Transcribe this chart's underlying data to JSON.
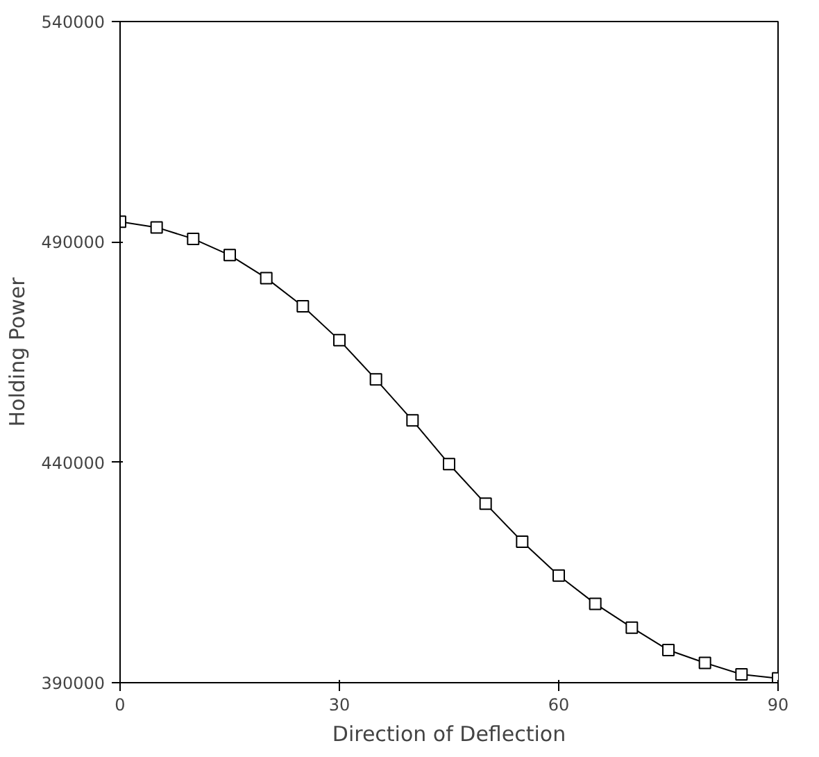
{
  "chart_data": {
    "type": "line",
    "xlabel": "Direction of Deflection",
    "ylabel": "Holding Power",
    "x": [
      0,
      5,
      10,
      15,
      20,
      25,
      30,
      35,
      40,
      45,
      50,
      55,
      60,
      65,
      70,
      75,
      80,
      85,
      90
    ],
    "series": [
      {
        "color": "#000000",
        "values": [
          494600,
          493300,
          490700,
          487000,
          481800,
          475400,
          467700,
          458800,
          449500,
          439600,
          430600,
          422000,
          414300,
          407900,
          402500,
          397400,
          394500,
          391900,
          391000
        ]
      }
    ],
    "xlim": [
      0,
      90
    ],
    "xticks": [
      0,
      30,
      60,
      90
    ],
    "ylim": [
      390000,
      540000
    ],
    "yticks": [
      390000,
      440000,
      490000,
      540000
    ],
    "grid": false,
    "marker": "square",
    "line_style": "solid"
  }
}
